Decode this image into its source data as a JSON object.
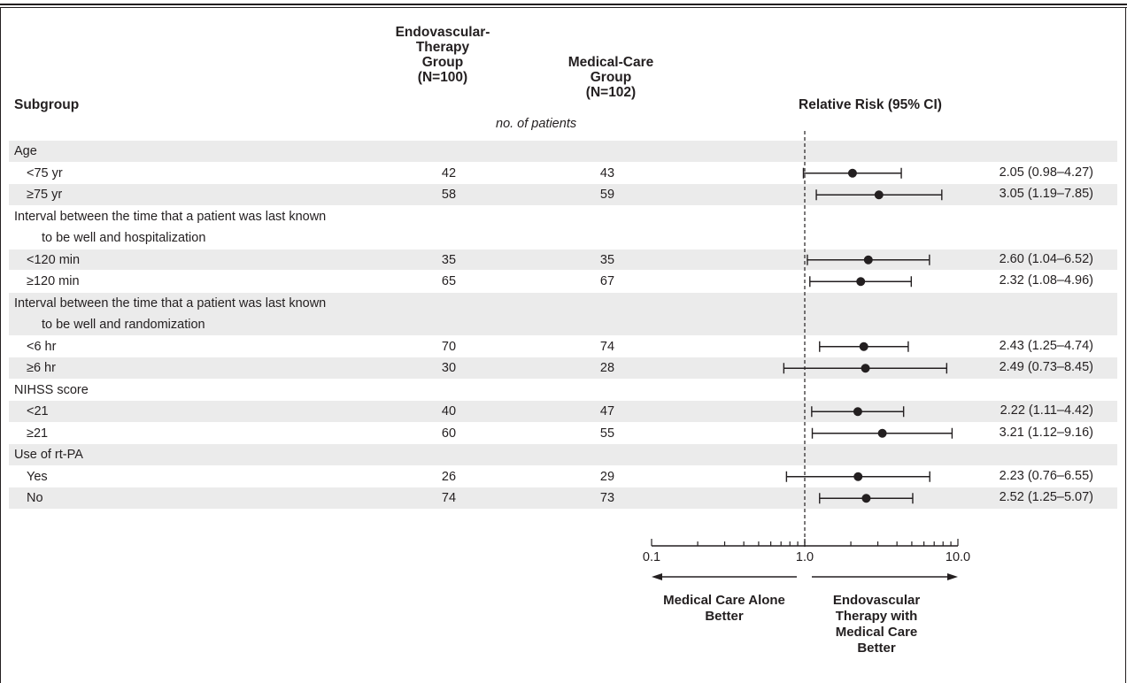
{
  "chart_data": {
    "type": "forest",
    "headers": {
      "subgroup": "Subgroup",
      "group1": [
        "Endovascular-",
        "Therapy",
        "Group",
        "(N=100)"
      ],
      "group2": [
        "Medical-Care",
        "Group",
        "(N=102)"
      ],
      "units": "no. of patients",
      "effect": "Relative Risk (95% CI)"
    },
    "rows": [
      {
        "label": "Age",
        "header": true
      },
      {
        "label": "<75 yr",
        "n1": "42",
        "n2": "43",
        "rr": 2.05,
        "lo": 0.98,
        "hi": 4.27,
        "ci_text": "2.05 (0.98–4.27)"
      },
      {
        "label": "≥75 yr",
        "n1": "58",
        "n2": "59",
        "rr": 3.05,
        "lo": 1.19,
        "hi": 7.85,
        "ci_text": "3.05 (1.19–7.85)"
      },
      {
        "label": "Interval between the time that a patient was last known",
        "label2": "to be well and hospitalization",
        "header": true
      },
      {
        "label": "<120 min",
        "n1": "35",
        "n2": "35",
        "rr": 2.6,
        "lo": 1.04,
        "hi": 6.52,
        "ci_text": "2.60 (1.04–6.52)"
      },
      {
        "label": "≥120 min",
        "n1": "65",
        "n2": "67",
        "rr": 2.32,
        "lo": 1.08,
        "hi": 4.96,
        "ci_text": "2.32 (1.08–4.96)"
      },
      {
        "label": "Interval between the time that a patient was last known",
        "label2": "to be well and randomization",
        "header": true
      },
      {
        "label": "<6 hr",
        "n1": "70",
        "n2": "74",
        "rr": 2.43,
        "lo": 1.25,
        "hi": 4.74,
        "ci_text": "2.43 (1.25–4.74)"
      },
      {
        "label": "≥6 hr",
        "n1": "30",
        "n2": "28",
        "rr": 2.49,
        "lo": 0.73,
        "hi": 8.45,
        "ci_text": "2.49 (0.73–8.45)"
      },
      {
        "label": "NIHSS score",
        "header": true
      },
      {
        "label": "<21",
        "n1": "40",
        "n2": "47",
        "rr": 2.22,
        "lo": 1.11,
        "hi": 4.42,
        "ci_text": "2.22 (1.11–4.42)"
      },
      {
        "label": "≥21",
        "n1": "60",
        "n2": "55",
        "rr": 3.21,
        "lo": 1.12,
        "hi": 9.16,
        "ci_text": "3.21 (1.12–9.16)"
      },
      {
        "label": "Use of rt-PA",
        "header": true
      },
      {
        "label": "Yes",
        "n1": "26",
        "n2": "29",
        "rr": 2.23,
        "lo": 0.76,
        "hi": 6.55,
        "ci_text": "2.23 (0.76–6.55)"
      },
      {
        "label": "No",
        "n1": "74",
        "n2": "73",
        "rr": 2.52,
        "lo": 1.25,
        "hi": 5.07,
        "ci_text": "2.52 (1.25–5.07)"
      }
    ],
    "x_axis": {
      "scale": "log",
      "range": [
        0.1,
        10.0
      ],
      "ticks": [
        "0.1",
        "1.0",
        "10.0"
      ],
      "reference": 1.0
    },
    "direction_left": [
      "Medical Care Alone",
      "Better"
    ],
    "direction_right": [
      "Endovascular",
      "Therapy with",
      "Medical Care",
      "Better"
    ],
    "colors": {
      "ink": "#231f20",
      "band": "#ebebeb"
    }
  }
}
